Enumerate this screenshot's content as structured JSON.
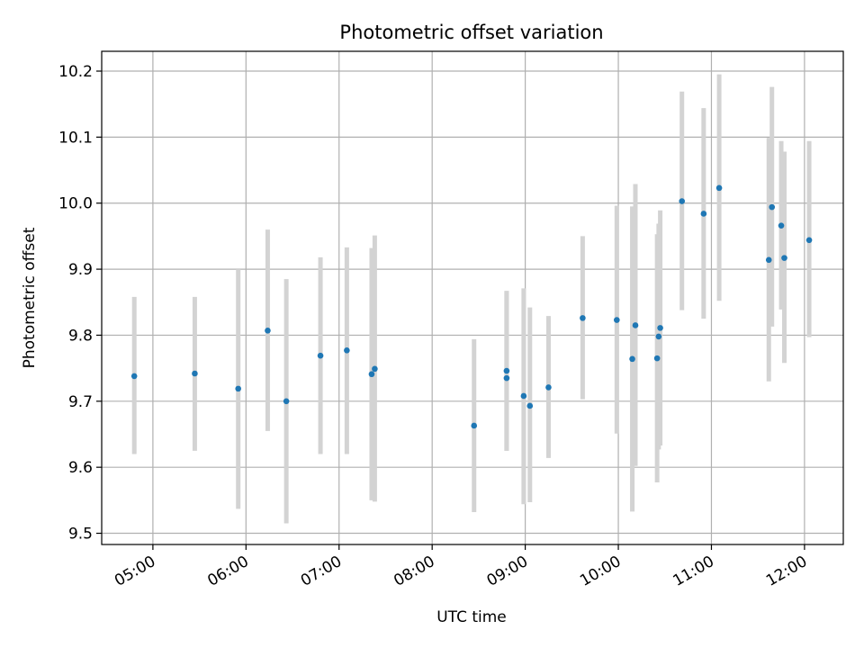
{
  "chart_data": {
    "type": "scatter",
    "title": "Photometric offset variation",
    "xlabel": "UTC time",
    "ylabel": "Photometric offset",
    "grid": true,
    "legend": "none",
    "xlim": [
      "04:27",
      "12:25"
    ],
    "ylim": [
      9.483,
      10.23
    ],
    "x_ticks": [
      "05:00",
      "06:00",
      "07:00",
      "08:00",
      "09:00",
      "10:00",
      "11:00",
      "12:00"
    ],
    "y_ticks": [
      9.5,
      9.6,
      9.7,
      9.8,
      9.9,
      10.0,
      10.1,
      10.2
    ],
    "y_tick_labels": [
      "9.5",
      "9.6",
      "9.7",
      "9.8",
      "9.9",
      "10.0",
      "10.1",
      "10.2"
    ],
    "series": [
      {
        "marker_color": "#1f77b4",
        "errorbar_color": "#d3d3d3",
        "points": [
          {
            "x": "04:48",
            "y": 9.738,
            "lo": 9.62,
            "hi": 9.858
          },
          {
            "x": "05:27",
            "y": 9.742,
            "lo": 9.625,
            "hi": 9.858
          },
          {
            "x": "05:55",
            "y": 9.719,
            "lo": 9.537,
            "hi": 9.9
          },
          {
            "x": "06:14",
            "y": 9.807,
            "lo": 9.655,
            "hi": 9.96
          },
          {
            "x": "06:26",
            "y": 9.7,
            "lo": 9.515,
            "hi": 9.885
          },
          {
            "x": "06:48",
            "y": 9.769,
            "lo": 9.62,
            "hi": 9.918
          },
          {
            "x": "07:05",
            "y": 9.777,
            "lo": 9.62,
            "hi": 9.933
          },
          {
            "x": "07:21",
            "y": 9.741,
            "lo": 9.55,
            "hi": 9.932
          },
          {
            "x": "07:23",
            "y": 9.749,
            "lo": 9.548,
            "hi": 9.951
          },
          {
            "x": "08:27",
            "y": 9.663,
            "lo": 9.532,
            "hi": 9.794
          },
          {
            "x": "08:48",
            "y": 9.746,
            "lo": 9.625,
            "hi": 9.867
          },
          {
            "x": "08:48",
            "y": 9.735,
            "lo": 9.625,
            "hi": 9.867
          },
          {
            "x": "08:59",
            "y": 9.708,
            "lo": 9.544,
            "hi": 9.871
          },
          {
            "x": "09:03",
            "y": 9.693,
            "lo": 9.547,
            "hi": 9.842
          },
          {
            "x": "09:15",
            "y": 9.721,
            "lo": 9.614,
            "hi": 9.829
          },
          {
            "x": "09:37",
            "y": 9.826,
            "lo": 9.703,
            "hi": 9.95
          },
          {
            "x": "09:59",
            "y": 9.823,
            "lo": 9.651,
            "hi": 9.996
          },
          {
            "x": "10:09",
            "y": 9.764,
            "lo": 9.533,
            "hi": 9.995
          },
          {
            "x": "10:11",
            "y": 9.815,
            "lo": 9.602,
            "hi": 10.029
          },
          {
            "x": "10:25",
            "y": 9.765,
            "lo": 9.577,
            "hi": 9.953
          },
          {
            "x": "10:26",
            "y": 9.798,
            "lo": 9.627,
            "hi": 9.969
          },
          {
            "x": "10:27",
            "y": 9.811,
            "lo": 9.633,
            "hi": 9.989
          },
          {
            "x": "10:41",
            "y": 10.003,
            "lo": 9.838,
            "hi": 10.169
          },
          {
            "x": "10:55",
            "y": 9.984,
            "lo": 9.825,
            "hi": 10.144
          },
          {
            "x": "11:05",
            "y": 10.023,
            "lo": 9.852,
            "hi": 10.195
          },
          {
            "x": "11:37",
            "y": 9.914,
            "lo": 9.73,
            "hi": 10.099
          },
          {
            "x": "11:39",
            "y": 9.994,
            "lo": 9.813,
            "hi": 10.176
          },
          {
            "x": "11:45",
            "y": 9.966,
            "lo": 9.839,
            "hi": 10.094
          },
          {
            "x": "11:47",
            "y": 9.917,
            "lo": 9.758,
            "hi": 10.078
          },
          {
            "x": "12:03",
            "y": 9.944,
            "lo": 9.797,
            "hi": 10.094
          }
        ]
      }
    ]
  }
}
